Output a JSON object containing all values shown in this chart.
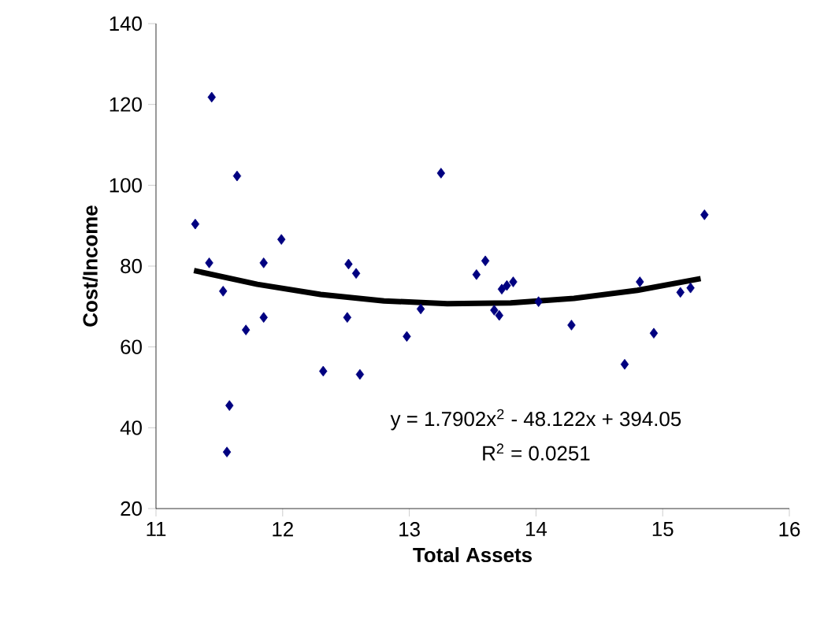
{
  "chart_data": {
    "type": "scatter",
    "xlabel": "Total Assets",
    "ylabel": "Cost/Income",
    "xlim": [
      11,
      16
    ],
    "xticks": [
      11,
      12,
      13,
      14,
      15,
      16
    ],
    "ylim": [
      20,
      140
    ],
    "yticks": [
      20,
      40,
      60,
      80,
      100,
      120,
      140
    ],
    "grid": false,
    "series": [
      {
        "color": "#000080",
        "marker": "diamond",
        "x": [
          11.31,
          11.44,
          11.42,
          11.53,
          11.64,
          11.58,
          11.56,
          11.71,
          11.85,
          11.85,
          11.99,
          12.32,
          12.52,
          12.58,
          12.51,
          12.61,
          12.98,
          13.09,
          13.25,
          15.33,
          13.6,
          13.53,
          13.73,
          13.82,
          13.77,
          13.67,
          13.71,
          14.02,
          14.28,
          14.7,
          14.82,
          14.93,
          15.14,
          15.22
        ],
        "values": [
          90.4,
          121.8,
          80.8,
          73.8,
          102.3,
          45.5,
          34.0,
          64.2,
          80.8,
          67.3,
          86.6,
          54.0,
          80.5,
          78.2,
          67.3,
          53.2,
          62.6,
          69.4,
          103.0,
          92.7,
          81.3,
          77.9,
          74.3,
          76.1,
          75.2,
          69.1,
          67.8,
          71.2,
          65.4,
          55.7,
          76.1,
          63.4,
          73.5,
          74.6
        ]
      },
      {
        "type": "line",
        "color": "#000000",
        "marker": "none",
        "line_style": "solid",
        "x": [
          11.3,
          11.8,
          12.3,
          12.8,
          13.3,
          13.8,
          14.3,
          14.8,
          15.3
        ],
        "values": [
          78.9,
          75.5,
          73.0,
          71.4,
          70.7,
          70.9,
          72.0,
          74.0,
          76.9
        ]
      }
    ],
    "annotations": [
      "y = 1.7902x$^{2}$ - 48.122x + 394.05",
      "R$^{2}$ = 0.0251"
    ]
  }
}
